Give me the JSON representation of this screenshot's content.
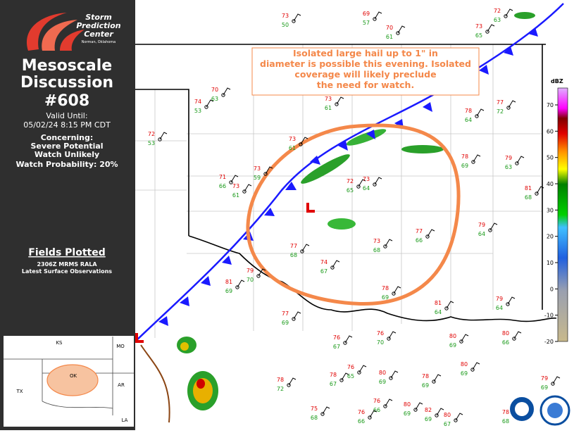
{
  "sidebar": {
    "logo": {
      "line1": "Storm",
      "line2": "Prediction",
      "line3": "Center",
      "line4": "Norman, Oklahoma"
    },
    "title": [
      "Mesoscale",
      "Discussion",
      "#608"
    ],
    "valid_label": "Valid Until:",
    "valid_time": "05/02/24 8:15 PM CDT",
    "concerning_label": "Concerning:",
    "concerning": [
      "Severe Potential",
      "Watch Unlikely",
      "Watch Probability: 20%"
    ],
    "fields_title": "Fields Plotted",
    "fields": [
      "2306Z MRMS RALA",
      "Latest Surface Observations"
    ]
  },
  "inset": {
    "labels": [
      "KS",
      "MO",
      "OK",
      "TX",
      "AR",
      "LA"
    ]
  },
  "map": {
    "annotation": [
      "Isolated large hail up to 1\" in",
      "diameter is possible this evening. Isolated",
      "coverage will likely preclude",
      "the need for watch."
    ],
    "colorbar": {
      "label": "dBZ",
      "lim": [
        -20,
        70
      ],
      "ticks": [
        70,
        60,
        50,
        40,
        30,
        20,
        10,
        0,
        -10,
        -20
      ]
    },
    "stations": [
      {
        "temp": 73,
        "dew": 50
      },
      {
        "temp": 69,
        "dew": 57
      },
      {
        "temp": 70,
        "dew": 61
      },
      {
        "temp": 72,
        "dew": 63
      },
      {
        "temp": 73,
        "dew": 65
      },
      {
        "temp": 70,
        "dew": 63
      },
      {
        "temp": 74,
        "dew": 53
      },
      {
        "temp": 73,
        "dew": 61
      },
      {
        "temp": 72,
        "dew": 53
      },
      {
        "temp": 73,
        "dew": 61
      },
      {
        "temp": 78,
        "dew": 64
      },
      {
        "temp": 77,
        "dew": 72
      },
      {
        "temp": 71,
        "dew": 66
      },
      {
        "temp": 73,
        "dew": 61
      },
      {
        "temp": 73,
        "dew": 59
      },
      {
        "temp": 72,
        "dew": 65
      },
      {
        "temp": 73,
        "dew": 64
      },
      {
        "temp": 78,
        "dew": 69
      },
      {
        "temp": 79,
        "dew": 63
      },
      {
        "temp": 81,
        "dew": 68
      },
      {
        "temp": 79,
        "dew": 64
      },
      {
        "temp": 77,
        "dew": 66
      },
      {
        "temp": 73,
        "dew": 68
      },
      {
        "temp": 77,
        "dew": 68
      },
      {
        "temp": 74,
        "dew": 67
      },
      {
        "temp": 79,
        "dew": 70
      },
      {
        "temp": 81,
        "dew": 69
      },
      {
        "temp": 78,
        "dew": 69
      },
      {
        "temp": 81,
        "dew": 64
      },
      {
        "temp": 79,
        "dew": 64
      },
      {
        "temp": 77,
        "dew": 69
      },
      {
        "temp": 76,
        "dew": 67
      },
      {
        "temp": 76,
        "dew": 70
      },
      {
        "temp": 80,
        "dew": 69
      },
      {
        "temp": 80,
        "dew": 66
      },
      {
        "temp": 76,
        "dew": 65
      },
      {
        "temp": 80,
        "dew": 69
      },
      {
        "temp": 78,
        "dew": 69
      },
      {
        "temp": 80,
        "dew": 69
      },
      {
        "temp": 78,
        "dew": 72
      },
      {
        "temp": 78,
        "dew": 67
      },
      {
        "temp": 79,
        "dew": 69
      },
      {
        "temp": 76,
        "dew": 66
      },
      {
        "temp": 80,
        "dew": 69
      },
      {
        "temp": 75,
        "dew": 68
      },
      {
        "temp": 76,
        "dew": 66
      },
      {
        "temp": 82,
        "dew": 69
      },
      {
        "temp": 80,
        "dew": 67
      },
      {
        "temp": 78,
        "dew": 68
      }
    ]
  }
}
